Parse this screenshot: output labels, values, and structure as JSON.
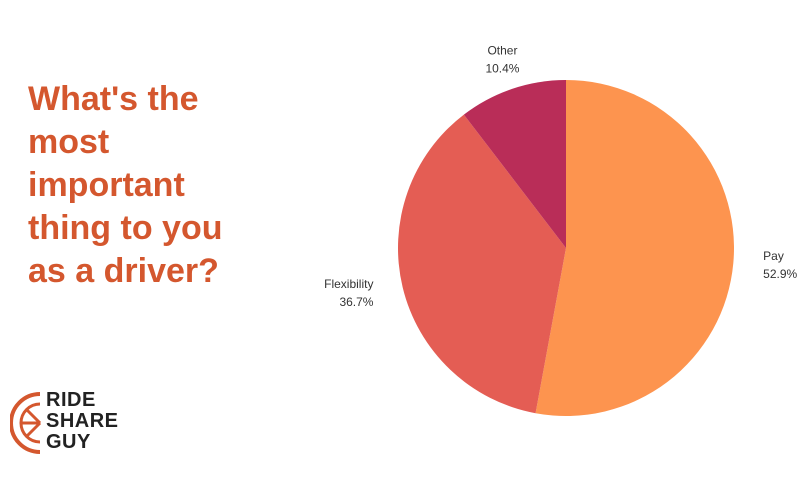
{
  "chart_data": {
    "type": "pie",
    "title": "What's the most important thing to you as a driver?",
    "categories": [
      "Pay",
      "Flexibility",
      "Other"
    ],
    "values": [
      52.9,
      36.7,
      10.4
    ],
    "value_labels": [
      "52.9%",
      "36.7%",
      "10.4%"
    ],
    "colors": [
      "#fd944f",
      "#e45d54",
      "#b92d58"
    ]
  },
  "logo": {
    "lines": [
      "RIDE",
      "SHARE",
      "GUY"
    ]
  }
}
